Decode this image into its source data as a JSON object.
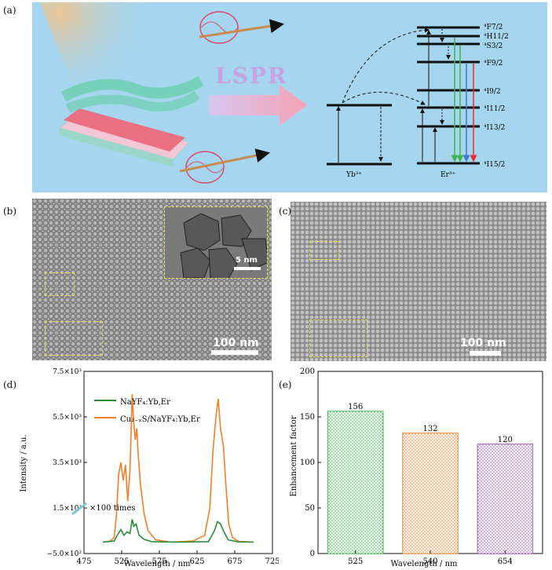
{
  "labels": {
    "a": "(a)",
    "b": "(b)",
    "c": "(c)",
    "d": "(d)",
    "e": "(e)"
  },
  "panel_a": {
    "lspr": "LSPR",
    "yb_label": "Yb³⁺",
    "er_label": "Er³⁺",
    "levels": [
      "⁴F7/2",
      "⁴H11/2",
      "⁴S3/2",
      "⁴F9/2",
      "⁴I9/2",
      "⁴I11/2",
      "⁴I13/2",
      "⁴I15/2"
    ]
  },
  "panel_b": {
    "scale": "100 nm",
    "inset_scale": "5 nm"
  },
  "panel_c": {
    "scale": "100 nm"
  },
  "chart_data": [
    {
      "type": "line",
      "panel": "d",
      "xlabel": "Wavelength / nm",
      "ylabel": "Intensity / a.u.",
      "xlim": [
        475,
        725
      ],
      "ylim": [
        -500,
        7500
      ],
      "xticks": [
        "475",
        "525",
        "575",
        "625",
        "675",
        "725"
      ],
      "yticks": [
        "−5.0×10²",
        "1.5×10³",
        "3.5×10³",
        "5.5×10³",
        "7.5×10³"
      ],
      "annotation": "×100 times",
      "series": [
        {
          "name": "NaYF₄:Yb,Er",
          "color": "#2b8a3e",
          "x": [
            500,
            515,
            520,
            524,
            528,
            532,
            536,
            539,
            541,
            544,
            548,
            555,
            565,
            600,
            640,
            648,
            652,
            656,
            660,
            666,
            680,
            700
          ],
          "y": [
            0,
            50,
            350,
            550,
            300,
            450,
            380,
            1000,
            700,
            800,
            300,
            120,
            20,
            0,
            20,
            500,
            900,
            800,
            500,
            100,
            10,
            0
          ]
        },
        {
          "name": "Cu₂₋ₓS/NaYF₄:Yb,Er",
          "color": "#f07f2a",
          "x": [
            500,
            510,
            515,
            518,
            521,
            524,
            527,
            530,
            533,
            536,
            539,
            541,
            543,
            545,
            547,
            550,
            555,
            560,
            570,
            590,
            620,
            635,
            642,
            646,
            650,
            653,
            656,
            660,
            663,
            667,
            672,
            680,
            700
          ],
          "y": [
            0,
            50,
            200,
            1200,
            3000,
            3500,
            2700,
            3400,
            1800,
            3200,
            6500,
            5200,
            4500,
            5000,
            3800,
            2500,
            1200,
            500,
            100,
            0,
            50,
            300,
            1500,
            4000,
            5500,
            6300,
            5000,
            4200,
            2600,
            800,
            200,
            30,
            0
          ]
        }
      ]
    },
    {
      "type": "bar",
      "panel": "e",
      "xlabel": "Wavelength / nm",
      "ylabel": "Enhancement factor",
      "ylim": [
        0,
        200
      ],
      "yticks": [
        "0",
        "50",
        "100",
        "150",
        "200"
      ],
      "categories": [
        "525",
        "540",
        "654"
      ],
      "values": [
        156,
        132,
        120
      ],
      "value_labels": [
        "156",
        "132",
        "120"
      ],
      "colors": [
        "#3bb54a",
        "#f07f2a",
        "#9b59b6"
      ]
    }
  ]
}
